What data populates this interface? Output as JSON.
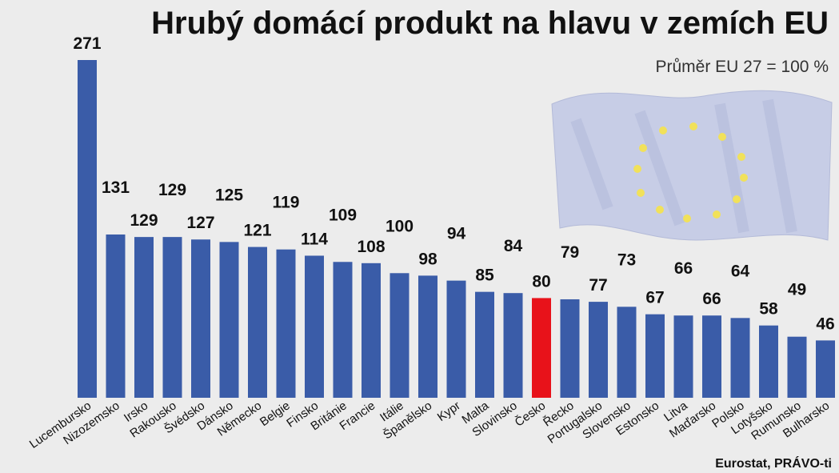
{
  "chart_data": {
    "type": "bar",
    "title": "Hrubý domácí produkt na hlavu v zemích EU",
    "subtitle": "Průměr EU 27 = 100 %",
    "source": "Eurostat, PRÁVO-ti",
    "categories": [
      "Lucembursko",
      "Nizozemsko",
      "Irsko",
      "Rakousko",
      "Švédsko",
      "Dánsko",
      "Německo",
      "Belgie",
      "Finsko",
      "Británie",
      "Francie",
      "Itálie",
      "Španělsko",
      "Kypr",
      "Malta",
      "Slovinsko",
      "Česko",
      "Řecko",
      "Portugalsko",
      "Slovensko",
      "Estonsko",
      "Litva",
      "Maďarsko",
      "Polsko",
      "Lotyšsko",
      "Rumunsko",
      "Bulharsko"
    ],
    "values": [
      271,
      131,
      129,
      129,
      127,
      125,
      121,
      119,
      114,
      109,
      108,
      100,
      98,
      94,
      85,
      84,
      80,
      79,
      77,
      73,
      67,
      66,
      66,
      64,
      58,
      49,
      46
    ],
    "colors": [
      "#3a5ca8",
      "#3a5ca8",
      "#3a5ca8",
      "#3a5ca8",
      "#3a5ca8",
      "#3a5ca8",
      "#3a5ca8",
      "#3a5ca8",
      "#3a5ca8",
      "#3a5ca8",
      "#3a5ca8",
      "#3a5ca8",
      "#3a5ca8",
      "#3a5ca8",
      "#3a5ca8",
      "#3a5ca8",
      "#e8121a",
      "#3a5ca8",
      "#3a5ca8",
      "#3a5ca8",
      "#3a5ca8",
      "#3a5ca8",
      "#3a5ca8",
      "#3a5ca8",
      "#3a5ca8",
      "#3a5ca8",
      "#3a5ca8"
    ]
  }
}
